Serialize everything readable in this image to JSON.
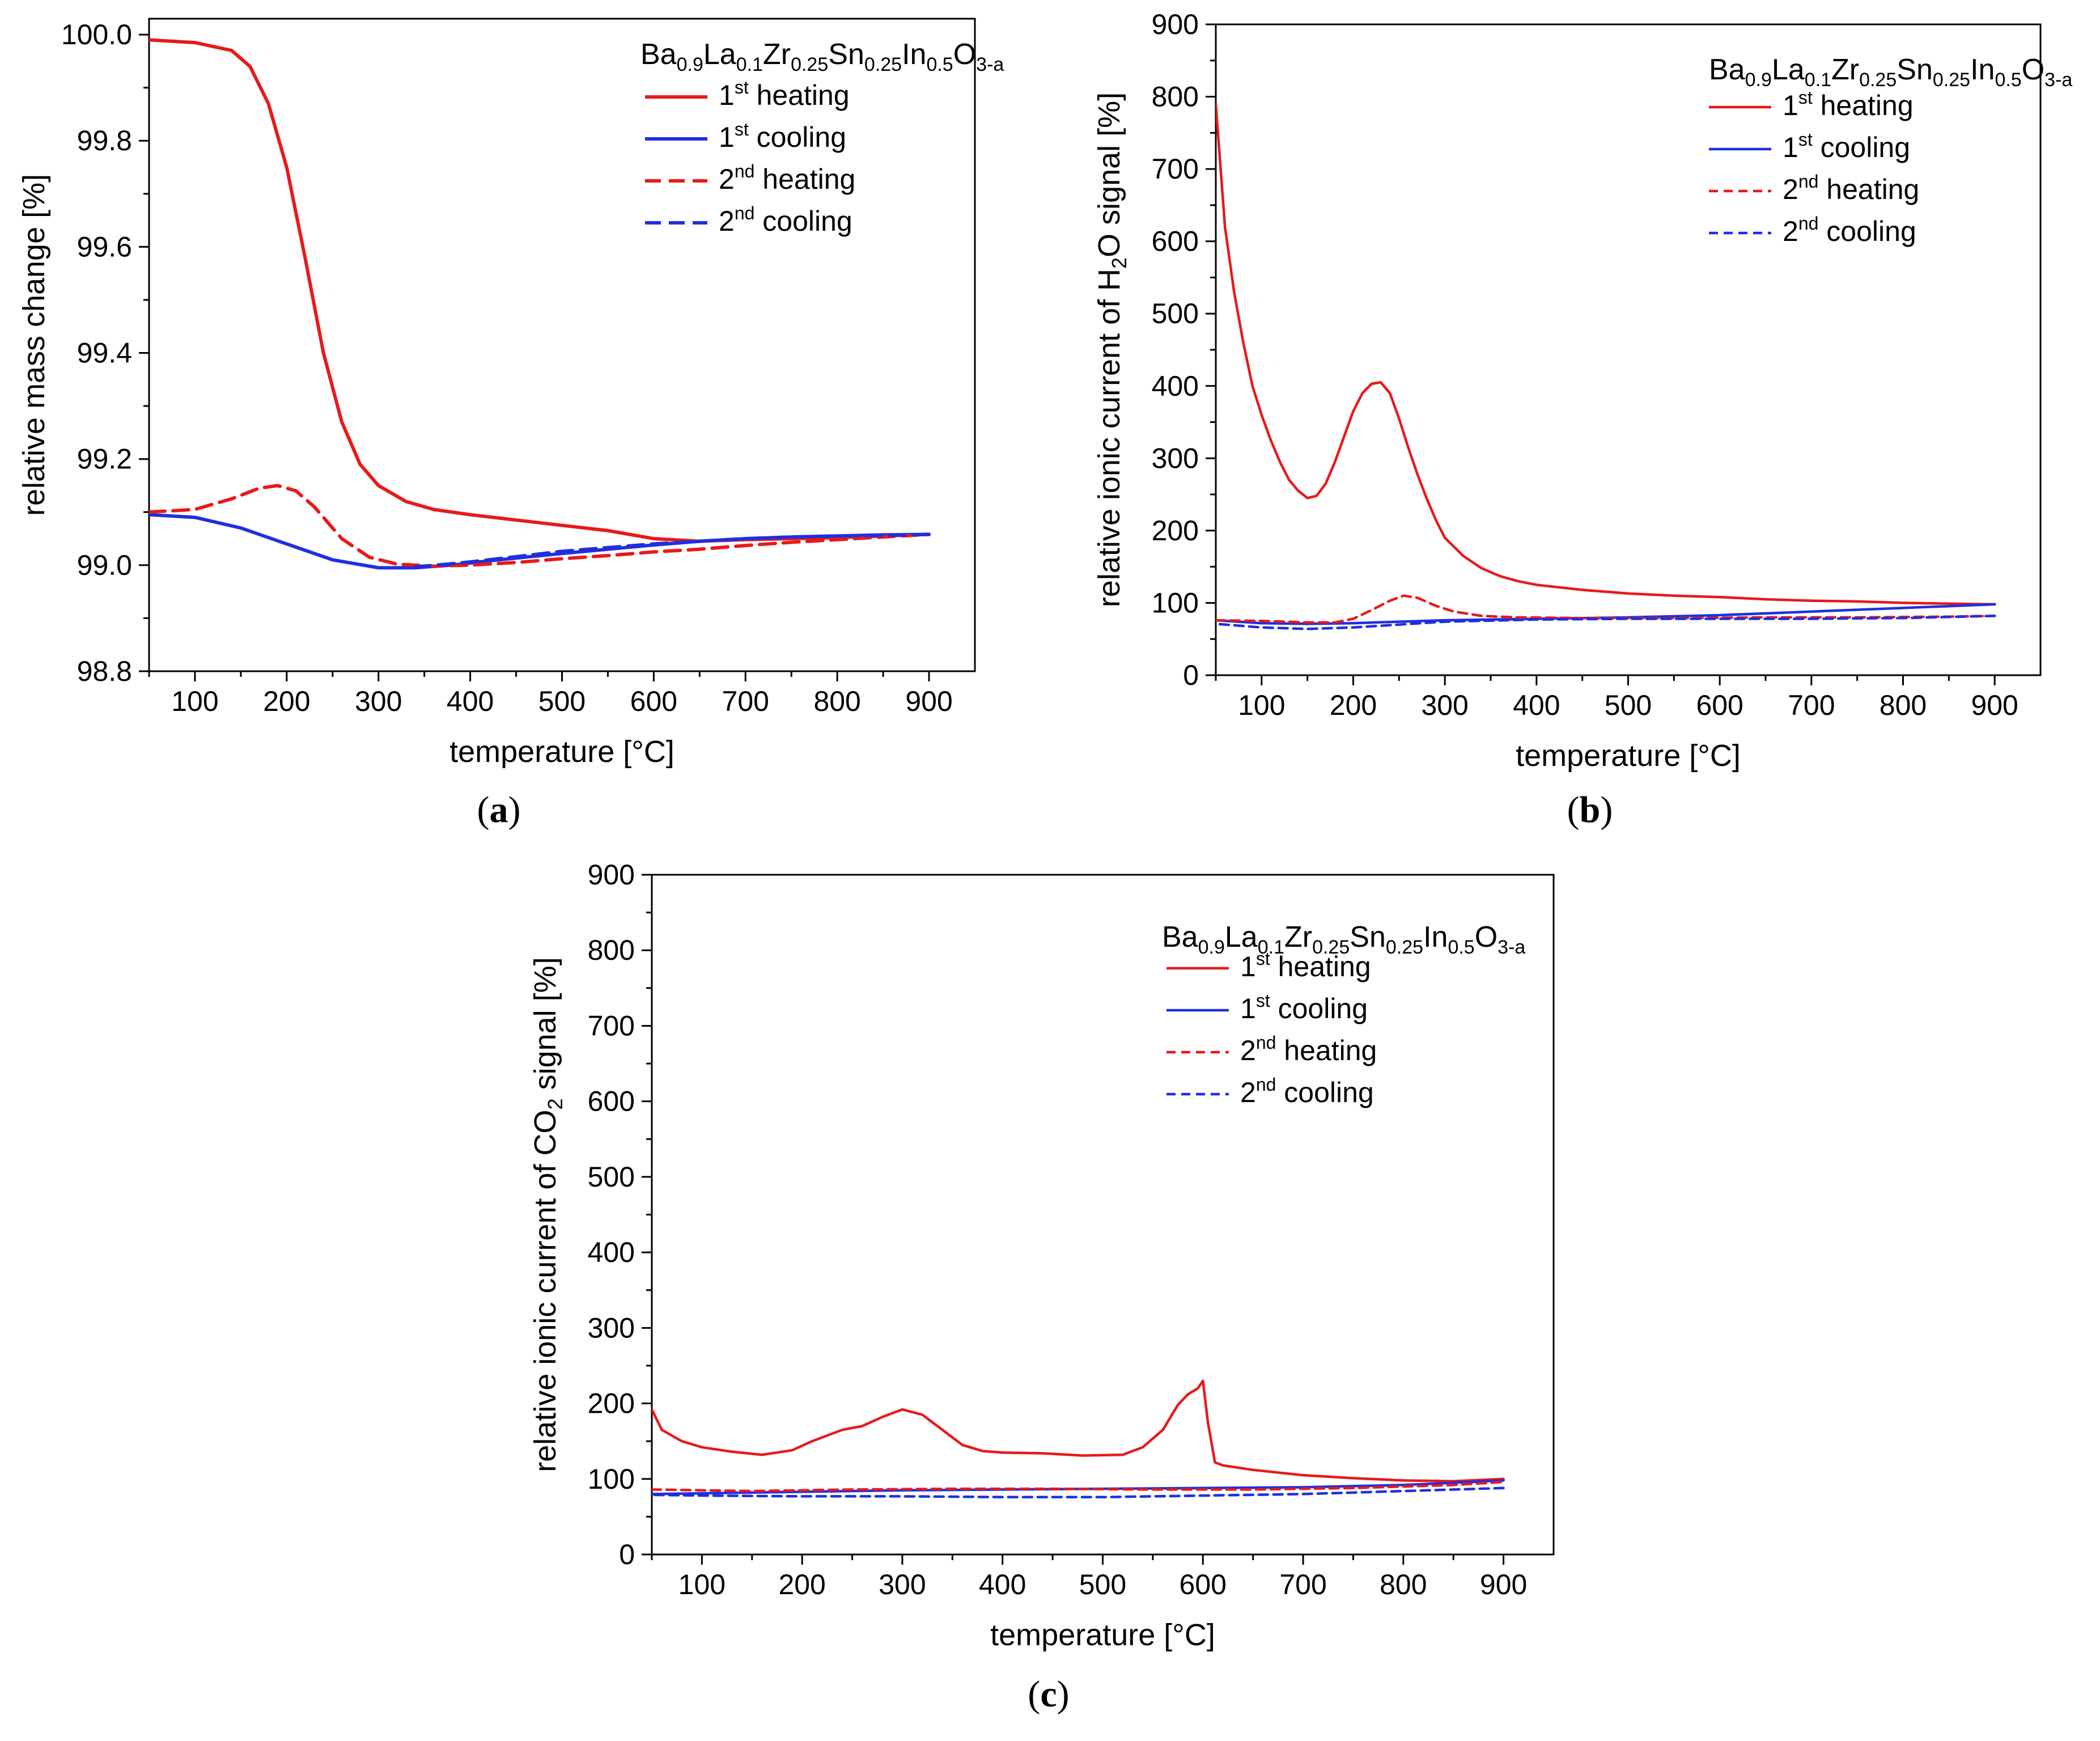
{
  "figure": {
    "formula": {
      "parts": [
        {
          "t": "Ba",
          "sub": false
        },
        {
          "t": "0.9",
          "sub": true
        },
        {
          "t": "La",
          "sub": false
        },
        {
          "t": "0.1",
          "sub": true
        },
        {
          "t": "Zr",
          "sub": false
        },
        {
          "t": "0.25",
          "sub": true
        },
        {
          "t": "Sn",
          "sub": false
        },
        {
          "t": "0.25",
          "sub": true
        },
        {
          "t": "In",
          "sub": false
        },
        {
          "t": "0.5",
          "sub": true
        },
        {
          "t": "O",
          "sub": false
        },
        {
          "t": "3-a",
          "sub": true
        }
      ]
    },
    "legend_labels": [
      {
        "num": "1",
        "sup": "st",
        "text": "heating"
      },
      {
        "num": "1",
        "sup": "st",
        "text": "cooling"
      },
      {
        "num": "2",
        "sup": "nd",
        "text": "heating"
      },
      {
        "num": "2",
        "sup": "nd",
        "text": "cooling"
      }
    ],
    "colors": {
      "heating": "#e8191a",
      "cooling": "#1f2fe0",
      "axis": "#000000"
    }
  },
  "chart_data": [
    {
      "panel": "a",
      "panel_label": "(a)",
      "type": "line",
      "xlabel": "temperature [°C]",
      "ylabel_parts": [
        {
          "t": "relative mass change [%]",
          "sub": false
        }
      ],
      "xlim": [
        50,
        950
      ],
      "ylim": [
        98.8,
        100.03
      ],
      "xticks": [
        100,
        200,
        300,
        400,
        500,
        600,
        700,
        800,
        900
      ],
      "yticks": [
        98.8,
        99.0,
        99.2,
        99.4,
        99.6,
        99.8,
        100.0
      ],
      "ytick_labels": [
        "98.8",
        "99.0",
        "99.2",
        "99.4",
        "99.6",
        "99.8",
        "100.0"
      ],
      "legend_position": "top-right",
      "series": [
        {
          "name": "1st heating",
          "color": "#e8191a",
          "dash": "solid",
          "x": [
            50,
            100,
            140,
            160,
            180,
            200,
            220,
            240,
            260,
            280,
            300,
            330,
            360,
            400,
            450,
            500,
            550,
            600,
            650,
            700,
            750,
            800,
            850,
            900
          ],
          "y": [
            99.99,
            99.985,
            99.97,
            99.94,
            99.87,
            99.75,
            99.58,
            99.4,
            99.27,
            99.19,
            99.15,
            99.12,
            99.105,
            99.095,
            99.085,
            99.075,
            99.065,
            99.05,
            99.045,
            99.048,
            99.05,
            99.052,
            99.055,
            99.058
          ]
        },
        {
          "name": "1st cooling",
          "color": "#1f2fe0",
          "dash": "solid",
          "x": [
            50,
            100,
            150,
            200,
            250,
            300,
            340,
            380,
            420,
            460,
            500,
            550,
            600,
            650,
            700,
            750,
            800,
            850,
            900
          ],
          "y": [
            99.095,
            99.09,
            99.07,
            99.04,
            99.01,
            98.995,
            98.995,
            99.0,
            99.008,
            99.015,
            99.022,
            99.03,
            99.038,
            99.045,
            99.05,
            99.053,
            99.055,
            99.057,
            99.058
          ]
        },
        {
          "name": "2nd heating",
          "color": "#e8191a",
          "dash": "dashed",
          "x": [
            50,
            100,
            140,
            170,
            190,
            210,
            230,
            260,
            290,
            320,
            360,
            400,
            450,
            500,
            550,
            600,
            650,
            700,
            750,
            800,
            850,
            900
          ],
          "y": [
            99.1,
            99.105,
            99.125,
            99.145,
            99.15,
            99.14,
            99.11,
            99.05,
            99.015,
            99.002,
            98.998,
            99.0,
            99.005,
            99.012,
            99.018,
            99.025,
            99.03,
            99.037,
            99.043,
            99.048,
            99.053,
            99.058
          ]
        },
        {
          "name": "2nd cooling",
          "color": "#1f2fe0",
          "dash": "dashed",
          "x": [
            900,
            850,
            800,
            750,
            700,
            650,
            600,
            550,
            500,
            450,
            400,
            370,
            340
          ],
          "y": [
            99.058,
            99.056,
            99.055,
            99.053,
            99.05,
            99.045,
            99.04,
            99.033,
            99.026,
            99.016,
            99.006,
            99.001,
            98.997
          ]
        }
      ]
    },
    {
      "panel": "b",
      "panel_label": "(b)",
      "type": "line",
      "xlabel": "temperature [°C]",
      "ylabel_parts": [
        {
          "t": "relative ionic current of H",
          "sub": false
        },
        {
          "t": "2",
          "sub": true
        },
        {
          "t": "O signal [%]",
          "sub": false
        }
      ],
      "xlim": [
        50,
        950
      ],
      "ylim": [
        0,
        900
      ],
      "xticks": [
        100,
        200,
        300,
        400,
        500,
        600,
        700,
        800,
        900
      ],
      "yticks": [
        0,
        100,
        200,
        300,
        400,
        500,
        600,
        700,
        800,
        900
      ],
      "ytick_labels": [
        "0",
        "100",
        "200",
        "300",
        "400",
        "500",
        "600",
        "700",
        "800",
        "900"
      ],
      "legend_position": "top-right",
      "series": [
        {
          "name": "1st heating",
          "color": "#e8191a",
          "dash": "solid",
          "x": [
            50,
            60,
            70,
            80,
            90,
            100,
            110,
            120,
            130,
            140,
            150,
            160,
            170,
            180,
            190,
            200,
            210,
            220,
            230,
            240,
            250,
            260,
            270,
            280,
            290,
            300,
            320,
            340,
            360,
            380,
            400,
            450,
            500,
            550,
            600,
            650,
            700,
            750,
            800,
            850,
            900
          ],
          "y": [
            790,
            620,
            530,
            460,
            400,
            360,
            325,
            295,
            270,
            255,
            245,
            248,
            265,
            295,
            330,
            365,
            390,
            403,
            405,
            390,
            355,
            315,
            278,
            245,
            215,
            190,
            165,
            148,
            137,
            130,
            125,
            118,
            113,
            110,
            108,
            105,
            103,
            102,
            100,
            99,
            98
          ]
        },
        {
          "name": "1st cooling",
          "color": "#1f2fe0",
          "dash": "solid",
          "x": [
            900,
            800,
            700,
            600,
            500,
            400,
            300,
            250,
            200,
            150,
            100,
            50
          ],
          "y": [
            98,
            93,
            88,
            83,
            80,
            78,
            76,
            74,
            72,
            71,
            72,
            76
          ]
        },
        {
          "name": "2nd heating",
          "color": "#e8191a",
          "dash": "dashed",
          "x": [
            50,
            100,
            150,
            180,
            200,
            220,
            240,
            255,
            270,
            290,
            310,
            340,
            380,
            450,
            550,
            650,
            750,
            850,
            900
          ],
          "y": [
            76,
            75,
            73,
            73,
            78,
            90,
            103,
            110,
            107,
            96,
            88,
            82,
            80,
            79,
            79,
            80,
            80,
            81,
            82
          ]
        },
        {
          "name": "2nd cooling",
          "color": "#1f2fe0",
          "dash": "dashed",
          "x": [
            900,
            800,
            700,
            600,
            500,
            400,
            300,
            250,
            200,
            150,
            100,
            50
          ],
          "y": [
            82,
            79,
            78,
            78,
            78,
            77,
            74,
            70,
            66,
            64,
            66,
            71
          ]
        }
      ]
    },
    {
      "panel": "c",
      "panel_label": "(c)",
      "type": "line",
      "xlabel": "temperature [°C]",
      "ylabel_parts": [
        {
          "t": "relative ionic current of CO",
          "sub": false
        },
        {
          "t": "2",
          "sub": true
        },
        {
          "t": " signal [%]",
          "sub": false
        }
      ],
      "xlim": [
        50,
        950
      ],
      "ylim": [
        0,
        900
      ],
      "xticks": [
        100,
        200,
        300,
        400,
        500,
        600,
        700,
        800,
        900
      ],
      "yticks": [
        0,
        100,
        200,
        300,
        400,
        500,
        600,
        700,
        800,
        900
      ],
      "ytick_labels": [
        "0",
        "100",
        "200",
        "300",
        "400",
        "500",
        "600",
        "700",
        "800",
        "900"
      ],
      "legend_position": "top-right",
      "series": [
        {
          "name": "1st heating",
          "color": "#e8191a",
          "dash": "solid",
          "x": [
            50,
            60,
            80,
            100,
            130,
            160,
            190,
            210,
            240,
            260,
            280,
            300,
            320,
            340,
            360,
            380,
            400,
            440,
            480,
            520,
            540,
            560,
            575,
            585,
            595,
            600,
            605,
            612,
            620,
            650,
            700,
            750,
            800,
            850,
            900
          ],
          "y": [
            192,
            165,
            150,
            142,
            136,
            132,
            138,
            150,
            165,
            170,
            182,
            192,
            185,
            165,
            145,
            137,
            135,
            134,
            131,
            132,
            142,
            165,
            198,
            212,
            220,
            230,
            175,
            122,
            118,
            112,
            105,
            101,
            98,
            97,
            100
          ]
        },
        {
          "name": "1st cooling",
          "color": "#1f2fe0",
          "dash": "solid",
          "x": [
            900,
            800,
            700,
            600,
            500,
            400,
            300,
            200,
            100,
            50
          ],
          "y": [
            98,
            92,
            89,
            88,
            87,
            86,
            85,
            83,
            81,
            80
          ]
        },
        {
          "name": "2nd heating",
          "color": "#e8191a",
          "dash": "dashed",
          "x": [
            50,
            150,
            250,
            350,
            450,
            550,
            650,
            750,
            850,
            900
          ],
          "y": [
            86,
            84,
            86,
            87,
            87,
            86,
            86,
            88,
            92,
            96
          ]
        },
        {
          "name": "2nd cooling",
          "color": "#1f2fe0",
          "dash": "dashed",
          "x": [
            900,
            800,
            700,
            600,
            500,
            400,
            300,
            200,
            100,
            50
          ],
          "y": [
            88,
            84,
            80,
            78,
            76,
            76,
            77,
            77,
            78,
            79
          ]
        }
      ]
    }
  ]
}
